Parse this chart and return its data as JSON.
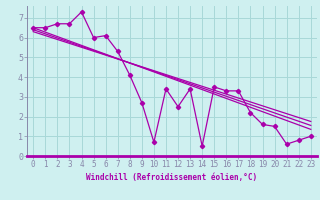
{
  "xlabel": "Windchill (Refroidissement éolien,°C)",
  "bg_color": "#cff0f0",
  "grid_color": "#a8d8d8",
  "line_color": "#aa00aa",
  "spine_color": "#8888aa",
  "xlim": [
    -0.5,
    23.5
  ],
  "ylim": [
    0,
    7.6
  ],
  "xticks": [
    0,
    1,
    2,
    3,
    4,
    5,
    6,
    7,
    8,
    9,
    10,
    11,
    12,
    13,
    14,
    15,
    16,
    17,
    18,
    19,
    20,
    21,
    22,
    23
  ],
  "yticks": [
    0,
    1,
    2,
    3,
    4,
    5,
    6,
    7
  ],
  "main_line_x": [
    0,
    1,
    2,
    3,
    4,
    5,
    6,
    7,
    8,
    9,
    10,
    11,
    12,
    13,
    14,
    15,
    16,
    17,
    18,
    19,
    20,
    21,
    22,
    23
  ],
  "main_line_y": [
    6.5,
    6.5,
    6.7,
    6.7,
    7.3,
    6.0,
    6.1,
    5.3,
    4.1,
    2.7,
    0.7,
    3.4,
    2.5,
    3.4,
    0.5,
    3.5,
    3.3,
    3.3,
    2.2,
    1.6,
    1.5,
    0.6,
    0.8,
    1.0
  ],
  "trend1_x": [
    0,
    23
  ],
  "trend1_y": [
    6.5,
    1.35
  ],
  "trend2_x": [
    0,
    23
  ],
  "trend2_y": [
    6.4,
    1.55
  ],
  "trend3_x": [
    0,
    23
  ],
  "trend3_y": [
    6.3,
    1.75
  ],
  "tick_fontsize": 5.5,
  "xlabel_fontsize": 5.5
}
